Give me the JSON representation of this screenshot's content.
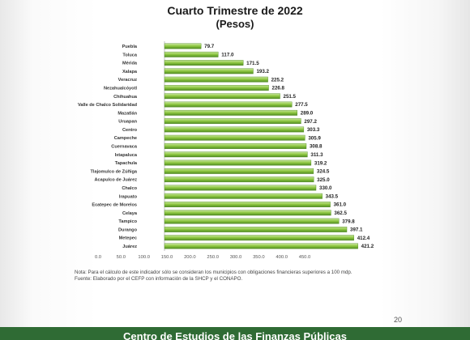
{
  "header": {
    "title_line_1": "Cuarto Trimestre de 2022",
    "title_line_2": "(Pesos)"
  },
  "colors": {
    "bar_fill": "#8cc63f",
    "bar_highlight": "#c7e59a",
    "bar_shadow": "#4f8a22",
    "footer": "#2f6b34"
  },
  "chart_data": {
    "type": "bar",
    "orientation": "horizontal",
    "categories": [
      "Puebla",
      "Toluca",
      "Mérida",
      "Xalapa",
      "Veracruz",
      "Nezahualcóyotl",
      "Chihuahua",
      "Valle de Chalco Solidaridad",
      "Mazatlán",
      "Uruapan",
      "Centro",
      "Campeche",
      "Cuernavaca",
      "Ixtapaluca",
      "Tapachula",
      "Tlajomulco de Zúñiga",
      "Acapulco de Juárez",
      "Chalco",
      "Irapuato",
      "Ecatepec de Morelos",
      "Celaya",
      "Tampico",
      "Durango",
      "Metepec",
      "Juárez"
    ],
    "values": [
      79.7,
      117.0,
      171.5,
      193.2,
      225.2,
      226.8,
      251.5,
      277.5,
      289.0,
      297.2,
      303.3,
      305.9,
      308.8,
      311.3,
      319.2,
      324.5,
      325.0,
      330.0,
      343.5,
      361.0,
      362.5,
      379.8,
      397.1,
      412.4,
      421.2
    ],
    "value_labels": [
      "79.7",
      "117.0",
      "171.5",
      "193.2",
      "225.2",
      "226.8",
      "251.5",
      "277.5",
      "289.0",
      "297.2",
      "303.3",
      "305.9",
      "308.8",
      "311.3",
      "319.2",
      "324.5",
      "325.0",
      "330.0",
      "343.5",
      "361.0",
      "362.5",
      "379.8",
      "397.1",
      "412.4",
      "421.2"
    ],
    "xlim": [
      0,
      450
    ],
    "x_ticks": [
      0,
      50,
      100,
      150,
      200,
      250,
      300,
      350,
      400,
      450
    ],
    "x_tick_labels": [
      "0.0",
      "50.0",
      "100.0",
      "150.0",
      "200.0",
      "250.0",
      "300.0",
      "350.0",
      "400.0",
      "450.0"
    ],
    "grid": false,
    "legend": "none"
  },
  "notes": {
    "note_1": "Nota: Para el cálculo de este indicador sólo se consideran los municipios con obligaciones financieras superiores a 100 mdp.",
    "note_2": "Fuente: Elaborado por el CEFP con información de la SHCP y el CONAPO."
  },
  "page_number": "20",
  "footer": {
    "text": "Centro de Estudios de las Finanzas Públicas"
  }
}
